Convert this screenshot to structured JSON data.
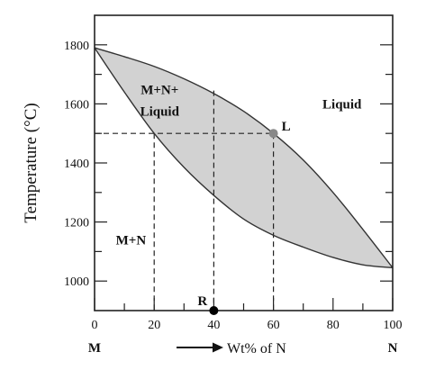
{
  "chart_data": {
    "type": "phase-diagram",
    "xlabel": "Wt% of N",
    "ylabel": "Temperature (°C)",
    "xlim": [
      0,
      100
    ],
    "ylim": [
      900,
      1900
    ],
    "x_ticks": [
      0,
      20,
      40,
      60,
      80,
      100
    ],
    "y_ticks": [
      1000,
      1200,
      1400,
      1600,
      1800
    ],
    "x_end_labels": {
      "left": "M",
      "right": "N"
    },
    "regions": [
      {
        "label_lines": [
          "M+N+",
          "Liquid"
        ],
        "at": [
          17,
          1615
        ]
      },
      {
        "label": "Liquid",
        "at": [
          83,
          1600
        ]
      },
      {
        "label": "M+N",
        "at": [
          11,
          1140
        ]
      }
    ],
    "liquidus": {
      "x": [
        0,
        10,
        20,
        30,
        40,
        50,
        60,
        70,
        80,
        90,
        100
      ],
      "y": [
        1790,
        1760,
        1727,
        1685,
        1635,
        1575,
        1500,
        1410,
        1300,
        1175,
        1045
      ]
    },
    "solidus": {
      "x": [
        0,
        10,
        20,
        30,
        40,
        50,
        60,
        70,
        80,
        90,
        100
      ],
      "y": [
        1790,
        1640,
        1500,
        1385,
        1290,
        1210,
        1155,
        1115,
        1080,
        1055,
        1045
      ]
    },
    "tie_line": {
      "temperature": 1500,
      "from_x": 0,
      "to_x": 60
    },
    "drop_lines": [
      {
        "x": 20,
        "from_y": 1500
      },
      {
        "x": 40,
        "from_y": 1645
      },
      {
        "x": 60,
        "from_y": 1500
      }
    ],
    "points": [
      {
        "label": "L",
        "x": 60,
        "y": 1500
      },
      {
        "label": "R",
        "x": 40,
        "y": 900
      }
    ],
    "colors": {
      "two_phase_fill": "#d2d2d2",
      "curve": "#333333",
      "point_L": "#888888",
      "point_R": "#000000"
    }
  }
}
